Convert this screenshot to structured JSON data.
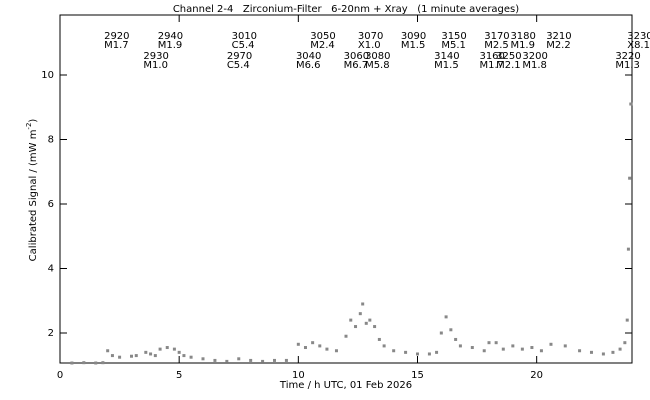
{
  "chart_data": {
    "type": "scatter",
    "title": "Channel 2-4   Zirconium-Filter   6-20nm + Xray   (1 minute averages)",
    "xlabel": "Time / h UTC, 01 Feb 2026",
    "ylabel": [
      "Calibrated Signal / (mW m",
      "-2",
      ")"
    ],
    "xlim": [
      0,
      24
    ],
    "ylim": [
      1.07,
      11.86
    ],
    "xticks": [
      0,
      5,
      10,
      15,
      20
    ],
    "yticks": [
      2,
      4,
      6,
      8,
      10
    ],
    "color": "#888888",
    "x": [
      0.5,
      1.0,
      1.5,
      1.8,
      2.0,
      2.2,
      2.5,
      3.0,
      3.2,
      3.6,
      3.8,
      4.0,
      4.2,
      4.5,
      4.8,
      5.0,
      5.2,
      5.5,
      6.0,
      6.5,
      7.0,
      7.5,
      8.0,
      8.5,
      9.0,
      9.5,
      10.0,
      10.3,
      10.6,
      10.9,
      11.2,
      11.6,
      12.0,
      12.2,
      12.4,
      12.6,
      12.7,
      12.85,
      13.0,
      13.2,
      13.4,
      13.6,
      14.0,
      14.5,
      15.0,
      15.5,
      15.8,
      16.0,
      16.2,
      16.4,
      16.6,
      16.8,
      17.3,
      17.8,
      18.0,
      18.3,
      18.6,
      19.0,
      19.4,
      19.8,
      20.2,
      20.6,
      21.2,
      21.8,
      22.3,
      22.8,
      23.2,
      23.5,
      23.7,
      23.8,
      23.85,
      23.9,
      23.95
    ],
    "values": [
      1.07,
      1.08,
      1.07,
      1.08,
      1.45,
      1.3,
      1.25,
      1.28,
      1.3,
      1.4,
      1.35,
      1.3,
      1.5,
      1.55,
      1.5,
      1.4,
      1.3,
      1.25,
      1.2,
      1.15,
      1.12,
      1.2,
      1.15,
      1.12,
      1.15,
      1.15,
      1.65,
      1.55,
      1.7,
      1.6,
      1.5,
      1.45,
      1.9,
      2.4,
      2.2,
      2.6,
      2.9,
      2.3,
      2.4,
      2.2,
      1.8,
      1.6,
      1.45,
      1.4,
      1.35,
      1.35,
      1.4,
      2.0,
      2.5,
      2.1,
      1.8,
      1.6,
      1.55,
      1.45,
      1.7,
      1.7,
      1.5,
      1.6,
      1.5,
      1.55,
      1.45,
      1.65,
      1.6,
      1.45,
      1.4,
      1.35,
      1.4,
      1.5,
      1.7,
      2.4,
      4.6,
      6.8,
      9.1
    ],
    "annotations": [
      [
        {
          "x": 1.85,
          "id": "2920",
          "class": "M1.7"
        },
        {
          "x": 4.1,
          "id": "2940",
          "class": "M1.9"
        },
        {
          "x": 7.2,
          "id": "3010",
          "class": "C5.4"
        },
        {
          "x": 10.5,
          "id": "3050",
          "class": "M2.4"
        },
        {
          "x": 12.5,
          "id": "3070",
          "class": "X1.0"
        },
        {
          "x": 14.3,
          "id": "3090",
          "class": "M1.5"
        },
        {
          "x": 16.0,
          "id": "3150",
          "class": "M5.1"
        },
        {
          "x": 17.8,
          "id": "3170",
          "class": "M2.5"
        },
        {
          "x": 18.9,
          "id": "3180",
          "class": "M1.9"
        },
        {
          "x": 20.4,
          "id": "3210",
          "class": "M2.2"
        },
        {
          "x": 23.8,
          "id": "3230",
          "class": "X8.1"
        }
      ],
      [
        {
          "x": 3.5,
          "id": "2930",
          "class": "M1.0"
        },
        {
          "x": 7.0,
          "id": "2970",
          "class": "C5.4"
        },
        {
          "x": 9.9,
          "id": "3040",
          "class": "M6.6"
        },
        {
          "x": 11.9,
          "id": "3060",
          "class": "M6.7"
        },
        {
          "x": 12.8,
          "id": "3080",
          "class": "M5.8"
        },
        {
          "x": 15.7,
          "id": "3140",
          "class": "M1.5"
        },
        {
          "x": 17.6,
          "id": "3160",
          "class": "M1.7"
        },
        {
          "x": 18.3,
          "id": "3250",
          "class": "M2.1"
        },
        {
          "x": 19.4,
          "id": "3200",
          "class": "M1.8"
        },
        {
          "x": 23.3,
          "id": "3220",
          "class": "M1.3"
        }
      ]
    ]
  }
}
